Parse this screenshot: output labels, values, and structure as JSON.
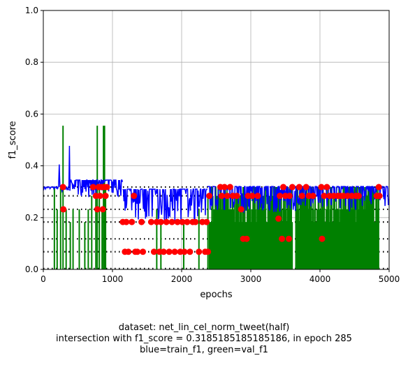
{
  "chart_data": {
    "type": "line",
    "xlabel": "epochs",
    "ylabel": "f1_score",
    "xlim": [
      0,
      5000
    ],
    "ylim": [
      0,
      1.0
    ],
    "grid": true,
    "xticks": [
      0,
      1000,
      2000,
      3000,
      4000,
      5000
    ],
    "xtick_labels": [
      "0",
      "1000",
      "2000",
      "3000",
      "4000",
      "5000"
    ],
    "yticks": [
      0.0,
      0.2,
      0.4,
      0.6,
      0.8,
      1.0
    ],
    "ytick_labels": [
      "0.0",
      "0.2",
      "0.4",
      "0.6",
      "0.8",
      "1.0"
    ],
    "dotted_levels": [
      0.318,
      0.284,
      0.232,
      0.183,
      0.118,
      0.068,
      0.003
    ],
    "series": [
      {
        "name": "train_f1",
        "color": "#0000ff",
        "segments": [
          {
            "x0": 0,
            "x1": 220,
            "values": [
              0.318,
              0.31,
              0.318
            ]
          },
          {
            "x0": 220,
            "x1": 240,
            "values": [
              0.318,
              0.405,
              0.318
            ]
          },
          {
            "x0": 240,
            "x1": 370,
            "values": [
              0.318,
              0.3,
              0.318
            ]
          },
          {
            "x0": 370,
            "x1": 385,
            "values": [
              0.318,
              0.477,
              0.318
            ]
          },
          {
            "x0": 385,
            "x1": 1150,
            "values": [
              0.318,
              0.278,
              0.345,
              0.31
            ]
          },
          {
            "x0": 1150,
            "x1": 2380,
            "values": [
              0.31,
              0.183,
              0.22,
              0.183
            ]
          },
          {
            "x0": 2380,
            "x1": 5000,
            "values": [
              0.318,
              0.22,
              0.32,
              0.28
            ]
          }
        ]
      },
      {
        "name": "val_f1",
        "color": "#008000",
        "spikes": [
          {
            "x": 160,
            "top": 0.318
          },
          {
            "x": 200,
            "top": 0.232
          },
          {
            "x": 250,
            "top": 0.318
          },
          {
            "x": 285,
            "top": 0.555
          },
          {
            "x": 330,
            "top": 0.232
          },
          {
            "x": 390,
            "top": 0.183
          },
          {
            "x": 430,
            "top": 0.232
          },
          {
            "x": 520,
            "top": 0.232
          },
          {
            "x": 600,
            "top": 0.183
          },
          {
            "x": 650,
            "top": 0.232
          },
          {
            "x": 700,
            "top": 0.284
          },
          {
            "x": 760,
            "top": 0.318
          },
          {
            "x": 780,
            "top": 0.555
          },
          {
            "x": 810,
            "top": 0.318
          },
          {
            "x": 850,
            "top": 0.232
          },
          {
            "x": 870,
            "top": 0.555
          },
          {
            "x": 885,
            "top": 0.555
          },
          {
            "x": 900,
            "top": 0.318
          },
          {
            "x": 1640,
            "top": 0.232
          },
          {
            "x": 1700,
            "top": 0.183
          },
          {
            "x": 2030,
            "top": 0.183
          },
          {
            "x": 2250,
            "top": 0.232
          },
          {
            "x": 2380,
            "top": 0.284
          }
        ],
        "dense_bands": [
          {
            "x0": 2400,
            "x1": 3600,
            "top": 0.318
          },
          {
            "x0": 3650,
            "x1": 4850,
            "top": 0.318
          }
        ]
      },
      {
        "name": "intersections",
        "color": "#ff0000",
        "points": [
          [
            285,
            0.318
          ],
          [
            290,
            0.232
          ],
          [
            720,
            0.318
          ],
          [
            760,
            0.284
          ],
          [
            780,
            0.232
          ],
          [
            800,
            0.318
          ],
          [
            820,
            0.284
          ],
          [
            840,
            0.318
          ],
          [
            860,
            0.232
          ],
          [
            880,
            0.318
          ],
          [
            900,
            0.284
          ],
          [
            920,
            0.318
          ],
          [
            1150,
            0.183
          ],
          [
            1180,
            0.068
          ],
          [
            1200,
            0.183
          ],
          [
            1230,
            0.068
          ],
          [
            1280,
            0.183
          ],
          [
            1310,
            0.284
          ],
          [
            1330,
            0.068
          ],
          [
            1360,
            0.068
          ],
          [
            1420,
            0.183
          ],
          [
            1440,
            0.068
          ],
          [
            1560,
            0.183
          ],
          [
            1600,
            0.068
          ],
          [
            1640,
            0.183
          ],
          [
            1680,
            0.068
          ],
          [
            1700,
            0.183
          ],
          [
            1740,
            0.068
          ],
          [
            1780,
            0.183
          ],
          [
            1820,
            0.068
          ],
          [
            1860,
            0.183
          ],
          [
            1900,
            0.068
          ],
          [
            1940,
            0.183
          ],
          [
            1980,
            0.068
          ],
          [
            2010,
            0.183
          ],
          [
            2040,
            0.068
          ],
          [
            2080,
            0.183
          ],
          [
            2120,
            0.068
          ],
          [
            2160,
            0.183
          ],
          [
            2200,
            0.183
          ],
          [
            2250,
            0.068
          ],
          [
            2300,
            0.183
          ],
          [
            2340,
            0.068
          ],
          [
            2360,
            0.183
          ],
          [
            2380,
            0.068
          ],
          [
            2400,
            0.284
          ],
          [
            2560,
            0.318
          ],
          [
            2580,
            0.284
          ],
          [
            2620,
            0.318
          ],
          [
            2660,
            0.284
          ],
          [
            2700,
            0.318
          ],
          [
            2740,
            0.284
          ],
          [
            2800,
            0.284
          ],
          [
            2860,
            0.232
          ],
          [
            2890,
            0.118
          ],
          [
            2940,
            0.118
          ],
          [
            2960,
            0.284
          ],
          [
            3020,
            0.284
          ],
          [
            3100,
            0.284
          ],
          [
            3400,
            0.196
          ],
          [
            3420,
            0.284
          ],
          [
            3450,
            0.118
          ],
          [
            3470,
            0.318
          ],
          [
            3500,
            0.284
          ],
          [
            3550,
            0.118
          ],
          [
            3560,
            0.284
          ],
          [
            3600,
            0.318
          ],
          [
            3700,
            0.318
          ],
          [
            3740,
            0.284
          ],
          [
            3800,
            0.318
          ],
          [
            3840,
            0.284
          ],
          [
            3900,
            0.284
          ],
          [
            4020,
            0.318
          ],
          [
            4030,
            0.118
          ],
          [
            4060,
            0.284
          ],
          [
            4100,
            0.318
          ],
          [
            4140,
            0.284
          ],
          [
            4200,
            0.284
          ],
          [
            4260,
            0.284
          ],
          [
            4300,
            0.284
          ],
          [
            4340,
            0.284
          ],
          [
            4400,
            0.284
          ],
          [
            4460,
            0.284
          ],
          [
            4520,
            0.284
          ],
          [
            4560,
            0.284
          ],
          [
            4820,
            0.284
          ],
          [
            4850,
            0.318
          ],
          [
            4860,
            0.284
          ]
        ]
      }
    ]
  },
  "caption": {
    "line1": "dataset: net_lin_cel_norm_tweet(half)",
    "line2": "intersection with f1_score = 0.3185185185185186, in epoch 285",
    "line3": "blue=train_f1, green=val_f1"
  }
}
